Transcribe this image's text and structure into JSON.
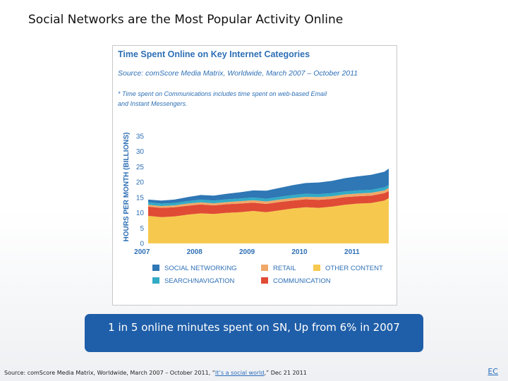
{
  "slide": {
    "title": "Social Networks are the Most Popular Activity Online",
    "callout": "1 in 5 online minutes spent on SN, Up from 6% in 2007",
    "source_prefix": "Source: comScore Media Matrix, Worldwide, March 2007 – October 2011,  “",
    "source_link": "It’s a social world",
    "source_suffix": ",” Dec 21 2011",
    "corner_text": "EC"
  },
  "chart_data": {
    "type": "area",
    "stacked": true,
    "title": "Time Spent Online on Key Internet Categories",
    "subtitle": "Source: comScore Media Matrix, Worldwide, March 2007 – October 2011",
    "footnote": [
      "* Time spent on Communications includes time spent on web-based Email",
      "and Instant Messengers."
    ],
    "ylabel": "HOURS PER MONTH (BILLIONS)",
    "xlabel": "",
    "ylim": [
      0,
      35
    ],
    "yticks": [
      0,
      5,
      10,
      15,
      20,
      25,
      30,
      35
    ],
    "xticks": [
      "2007",
      "2008",
      "2009",
      "2010",
      "2011"
    ],
    "x": [
      "2007-03",
      "2007-06",
      "2007-09",
      "2007-12",
      "2008-03",
      "2008-06",
      "2008-09",
      "2008-12",
      "2009-03",
      "2009-06",
      "2009-09",
      "2009-12",
      "2010-03",
      "2010-06",
      "2010-09",
      "2010-12",
      "2011-03",
      "2011-06",
      "2011-09",
      "2011-10"
    ],
    "grid": false,
    "legend_position": "bottom",
    "legend_order": [
      "SOCIAL NETWORKING",
      "RETAIL",
      "OTHER CONTENT",
      "SEARCH/NAVIGATION",
      "COMMUNICATION"
    ],
    "series": [
      {
        "name": "OTHER CONTENT",
        "color": "#f6c94e",
        "values": [
          9.0,
          8.6,
          8.8,
          9.4,
          9.8,
          9.6,
          10.0,
          10.2,
          10.6,
          10.2,
          10.8,
          11.4,
          11.8,
          11.6,
          12.0,
          12.6,
          13.0,
          13.2,
          14.0,
          14.8
        ]
      },
      {
        "name": "COMMUNICATION",
        "color": "#e04b35",
        "values": [
          3.0,
          3.0,
          3.0,
          2.9,
          2.9,
          2.8,
          2.8,
          2.8,
          2.7,
          2.7,
          2.7,
          2.6,
          2.6,
          2.6,
          2.5,
          2.5,
          2.4,
          2.4,
          2.4,
          2.3
        ]
      },
      {
        "name": "RETAIL",
        "color": "#f0a868",
        "values": [
          0.6,
          0.6,
          0.6,
          0.7,
          0.7,
          0.7,
          0.7,
          0.8,
          0.8,
          0.8,
          0.8,
          0.8,
          0.8,
          0.9,
          0.9,
          0.9,
          0.9,
          0.9,
          0.9,
          1.0
        ]
      },
      {
        "name": "SEARCH/NAVIGATION",
        "color": "#33abc6",
        "values": [
          0.8,
          0.8,
          0.8,
          0.8,
          0.9,
          0.9,
          0.9,
          0.9,
          0.9,
          0.9,
          0.9,
          1.0,
          1.0,
          1.0,
          1.0,
          1.0,
          1.0,
          1.0,
          1.0,
          1.0
        ]
      },
      {
        "name": "SOCIAL NETWORKING",
        "color": "#2f77b5",
        "values": [
          0.9,
          1.0,
          1.1,
          1.3,
          1.5,
          1.6,
          1.8,
          2.0,
          2.3,
          2.6,
          2.9,
          3.2,
          3.5,
          3.8,
          4.0,
          4.3,
          4.6,
          4.9,
          5.1,
          5.3
        ]
      }
    ]
  }
}
